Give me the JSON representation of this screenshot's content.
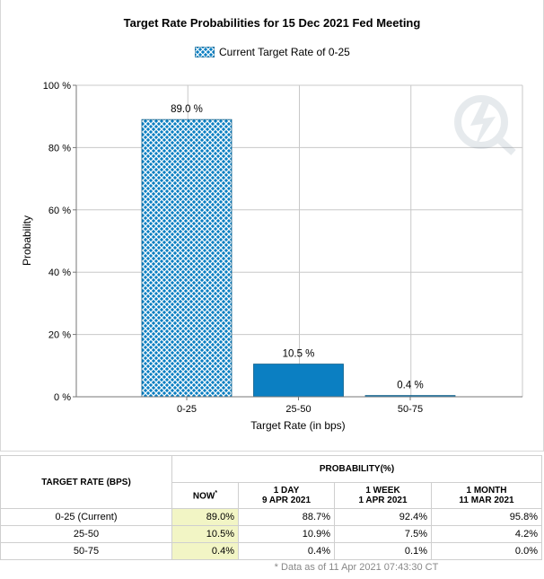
{
  "chart_data": {
    "type": "bar",
    "title": "Target Rate Probabilities for 15 Dec 2021 Fed Meeting",
    "xlabel": "Target Rate (in bps)",
    "ylabel": "Probability",
    "ylim": [
      0,
      100
    ],
    "yticks": [
      "0 %",
      "20 %",
      "40 %",
      "60 %",
      "80 %",
      "100 %"
    ],
    "categories": [
      "0-25",
      "25-50",
      "50-75"
    ],
    "values": [
      89.0,
      10.5,
      0.4
    ],
    "value_labels": [
      "89.0 %",
      "10.5 %",
      "0.4 %"
    ],
    "bar_styles": [
      "hatched",
      "solid",
      "solid"
    ],
    "legend": {
      "label": "Current Target Rate of 0-25",
      "position": "top"
    },
    "grid": true,
    "colors": {
      "bar": "#0b7fc2",
      "hatch": "#0a78b8",
      "grid": "#c8c8c8",
      "axis": "#777777"
    }
  },
  "table": {
    "header_rate": "TARGET RATE (BPS)",
    "header_prob": "PROBABILITY(%)",
    "columns": [
      {
        "line1": "NOW",
        "sup": "*",
        "line2": ""
      },
      {
        "line1": "1 DAY",
        "line2": "9 APR 2021"
      },
      {
        "line1": "1 WEEK",
        "line2": "1 APR 2021"
      },
      {
        "line1": "1 MONTH",
        "line2": "11 MAR 2021"
      }
    ],
    "rows": [
      {
        "rate": "0-25 (Current)",
        "values": [
          "89.0%",
          "88.7%",
          "92.4%",
          "95.8%"
        ]
      },
      {
        "rate": "25-50",
        "values": [
          "10.5%",
          "10.9%",
          "7.5%",
          "4.2%"
        ]
      },
      {
        "rate": "50-75",
        "values": [
          "0.4%",
          "0.4%",
          "0.1%",
          "0.0%"
        ]
      }
    ],
    "footnote": "* Data as of 11 Apr 2021 07:43:30 CT"
  }
}
